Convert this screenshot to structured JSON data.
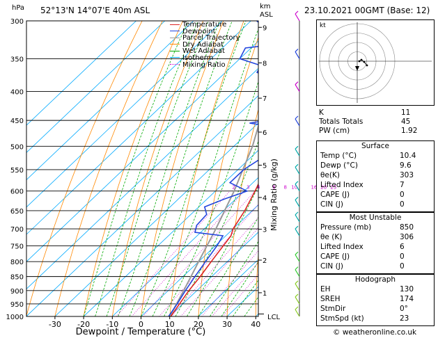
{
  "header": {
    "station": "52°13'N  14°07'E  40m  ASL",
    "datetime": "23.10.2021  00GMT  (Base: 12)",
    "hpa_label": "hPa",
    "km_label": "km",
    "asl_label": "ASL",
    "mixing_ratio_axis": "Mixing Ratio (g/kg)",
    "lcl_label": "LCL",
    "hodo_unit": "kt",
    "credit": "© weatheronline.co.uk"
  },
  "legend": [
    {
      "label": "Temperature",
      "color": "#dd2222",
      "style": "solid"
    },
    {
      "label": "Dewpoint",
      "color": "#2244dd",
      "style": "solid"
    },
    {
      "label": "Parcel Trajectory",
      "color": "#999999",
      "style": "solid"
    },
    {
      "label": "Dry Adiabat",
      "color": "#ff8800",
      "style": "solid"
    },
    {
      "label": "Wet Adiabat",
      "color": "#00aa00",
      "style": "solid"
    },
    {
      "label": "Isotherm",
      "color": "#00aaff",
      "style": "solid"
    },
    {
      "label": "Mixing Ratio",
      "color": "#cc00cc",
      "style": "dotted"
    }
  ],
  "indices": [
    {
      "label": "K",
      "value": "11"
    },
    {
      "label": "Totals Totals",
      "value": "45"
    },
    {
      "label": "PW (cm)",
      "value": "1.92"
    }
  ],
  "surface": {
    "title": "Surface",
    "rows": [
      {
        "label": "Temp (°C)",
        "value": "10.4"
      },
      {
        "label": "Dewp (°C)",
        "value": "9.6"
      },
      {
        "label": "θe(K)",
        "value": "303"
      },
      {
        "label": "Lifted Index",
        "value": "7"
      },
      {
        "label": "CAPE (J)",
        "value": "0"
      },
      {
        "label": "CIN (J)",
        "value": "0"
      }
    ]
  },
  "most_unstable": {
    "title": "Most Unstable",
    "rows": [
      {
        "label": "Pressure (mb)",
        "value": "850"
      },
      {
        "label": "θe (K)",
        "value": "306"
      },
      {
        "label": "Lifted Index",
        "value": "6"
      },
      {
        "label": "CAPE (J)",
        "value": "0"
      },
      {
        "label": "CIN (J)",
        "value": "0"
      }
    ]
  },
  "hodograph_table": {
    "title": "Hodograph",
    "rows": [
      {
        "label": "EH",
        "value": "130"
      },
      {
        "label": "SREH",
        "value": "174"
      },
      {
        "label": "StmDir",
        "value": "0°"
      },
      {
        "label": "StmSpd (kt)",
        "value": "23"
      }
    ]
  },
  "chart_data": {
    "type": "skew-t",
    "xlabel": "Dewpoint / Temperature (°C)",
    "ylabel": "hPa",
    "x_ticks": [
      -30,
      -20,
      -10,
      0,
      10,
      20,
      30,
      40
    ],
    "xlim": [
      -35,
      40
    ],
    "pressure_ticks": [
      300,
      350,
      400,
      450,
      500,
      550,
      600,
      650,
      700,
      750,
      800,
      850,
      900,
      950,
      1000
    ],
    "ylim_hpa": [
      1000,
      300
    ],
    "y_scale": "log",
    "km_ticks": [
      {
        "label": "1",
        "p": 908
      },
      {
        "label": "2",
        "p": 795
      },
      {
        "label": "3",
        "p": 701
      },
      {
        "label": "4",
        "p": 616
      },
      {
        "label": "5",
        "p": 540
      },
      {
        "label": "6",
        "p": 472
      },
      {
        "label": "7",
        "p": 411
      },
      {
        "label": "8",
        "p": 356
      },
      {
        "label": "9",
        "p": 308
      }
    ],
    "mixing_ratio_labels": [
      "2",
      "3",
      "4",
      "6",
      "8",
      "10",
      "16",
      "20",
      "25"
    ],
    "mixing_ratio_label_p": 590,
    "lcl_p": 990,
    "temperature": [
      {
        "p": 1000,
        "t": 10.4
      },
      {
        "p": 950,
        "t": 8.8
      },
      {
        "p": 900,
        "t": 7.2
      },
      {
        "p": 850,
        "t": 6.0
      },
      {
        "p": 800,
        "t": 4.4
      },
      {
        "p": 750,
        "t": 2.8
      },
      {
        "p": 720,
        "t": 1.8
      },
      {
        "p": 700,
        "t": 0.0
      },
      {
        "p": 650,
        "t": -2.6
      },
      {
        "p": 600,
        "t": -6.2
      },
      {
        "p": 550,
        "t": -10.5
      },
      {
        "p": 500,
        "t": -15.5
      },
      {
        "p": 470,
        "t": -18.5
      },
      {
        "p": 450,
        "t": -21.0
      },
      {
        "p": 400,
        "t": -27.5
      },
      {
        "p": 350,
        "t": -35.5
      },
      {
        "p": 330,
        "t": -39.0
      },
      {
        "p": 300,
        "t": -44.5
      }
    ],
    "dewpoint": [
      {
        "p": 1000,
        "t": 9.6
      },
      {
        "p": 950,
        "t": 8.0
      },
      {
        "p": 900,
        "t": 6.0
      },
      {
        "p": 850,
        "t": 4.2
      },
      {
        "p": 800,
        "t": 2.4
      },
      {
        "p": 750,
        "t": 0.6
      },
      {
        "p": 720,
        "t": -1.0
      },
      {
        "p": 710,
        "t": -12.0
      },
      {
        "p": 690,
        "t": -14.0
      },
      {
        "p": 660,
        "t": -14.5
      },
      {
        "p": 640,
        "t": -18.0
      },
      {
        "p": 620,
        "t": -14.0
      },
      {
        "p": 600,
        "t": -9.0
      },
      {
        "p": 580,
        "t": -18.0
      },
      {
        "p": 550,
        "t": -18.0
      },
      {
        "p": 500,
        "t": -14.0
      },
      {
        "p": 470,
        "t": -27.0
      },
      {
        "p": 460,
        "t": -26.0
      },
      {
        "p": 455,
        "t": -33.0
      },
      {
        "p": 450,
        "t": -28.0
      },
      {
        "p": 440,
        "t": -31.0
      },
      {
        "p": 420,
        "t": -34.0
      },
      {
        "p": 400,
        "t": -37.0
      },
      {
        "p": 380,
        "t": -42.0
      },
      {
        "p": 370,
        "t": -49.0
      },
      {
        "p": 360,
        "t": -50.0
      },
      {
        "p": 350,
        "t": -60.0
      },
      {
        "p": 335,
        "t": -62.0
      },
      {
        "p": 330,
        "t": -52.0
      },
      {
        "p": 320,
        "t": -55.0
      },
      {
        "p": 300,
        "t": -68.0
      }
    ],
    "parcel": [
      {
        "p": 1000,
        "t": 10.4
      },
      {
        "p": 990,
        "t": 9.6
      },
      {
        "p": 900,
        "t": 5.4
      },
      {
        "p": 850,
        "t": 2.8
      },
      {
        "p": 800,
        "t": 0.0
      },
      {
        "p": 700,
        "t": -6.0
      },
      {
        "p": 600,
        "t": -13.5
      },
      {
        "p": 500,
        "t": -23.5
      },
      {
        "p": 400,
        "t": -38.0
      },
      {
        "p": 300,
        "t": -58.0
      }
    ],
    "hodograph": {
      "rings_kt": [
        10,
        20,
        30,
        40
      ],
      "points": [
        {
          "u": 1.5,
          "v": 0
        },
        {
          "u": 3,
          "v": 1
        },
        {
          "u": 5,
          "v": -0.5
        },
        {
          "u": 7,
          "v": -3
        }
      ]
    }
  }
}
